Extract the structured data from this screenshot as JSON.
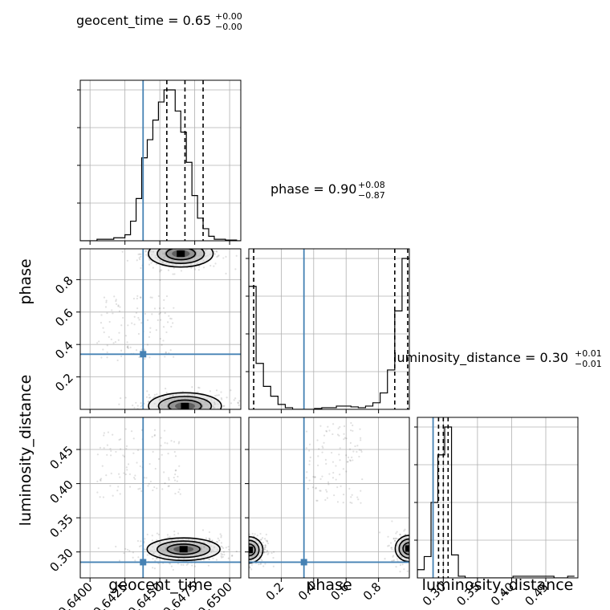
{
  "chart_data": {
    "type": "corner",
    "parameters": [
      "geocent_time",
      "phase",
      "luminosity_distance"
    ],
    "truth_color": "#4682b4",
    "truths": {
      "geocent_time": 0.6438,
      "phase": 0.34,
      "luminosity_distance": 0.285
    },
    "ranges": {
      "geocent_time": [
        0.6393,
        0.6508
      ],
      "phase": [
        0.0,
        0.99
      ],
      "luminosity_distance": [
        0.262,
        0.497
      ]
    },
    "ticks": {
      "geocent_time": [
        0.64,
        0.6425,
        0.645,
        0.6475,
        0.65
      ],
      "phase": [
        0.2,
        0.4,
        0.6,
        0.8
      ],
      "luminosity_distance": [
        0.3,
        0.35,
        0.4,
        0.45
      ]
    },
    "tick_labels": {
      "geocent_time": [
        "0.6400",
        "0.6425",
        "0.6450",
        "0.6475",
        "0.6500"
      ],
      "phase": [
        "0.2",
        "0.4",
        "0.6",
        "0.8"
      ],
      "luminosity_distance": [
        "0.30",
        "0.35",
        "0.40",
        "0.45"
      ]
    },
    "axis_labels": {
      "geocent_time": "geocent_time",
      "phase": "phase",
      "luminosity_distance": "luminosity_distance"
    },
    "titles": {
      "geocent_time": {
        "text": "geocent_time = 0.65",
        "plus": "+0.00",
        "minus": "−0.00"
      },
      "phase": {
        "text": "phase = 0.90",
        "plus": "+0.08",
        "minus": "−0.87"
      },
      "luminosity_distance": {
        "text": "luminosity_distance = 0.30",
        "plus": "+0.01",
        "minus": "−0.01"
      }
    },
    "histograms": {
      "geocent_time": {
        "edges": [
          0.6393,
          0.6397,
          0.6401,
          0.6405,
          0.6409,
          0.6413,
          0.6417,
          0.6421,
          0.6425,
          0.6429,
          0.6433,
          0.6437,
          0.6441,
          0.6445,
          0.6449,
          0.6453,
          0.6457,
          0.6461,
          0.6465,
          0.6469,
          0.6473,
          0.6477,
          0.6481,
          0.6485,
          0.6489,
          0.6493,
          0.6497,
          0.6501,
          0.6505,
          0.6509
        ],
        "counts": [
          0,
          0,
          0,
          0.01,
          0.01,
          0.01,
          0.02,
          0.02,
          0.04,
          0.13,
          0.28,
          0.55,
          0.67,
          0.8,
          0.92,
          1.0,
          1.0,
          0.86,
          0.72,
          0.52,
          0.3,
          0.15,
          0.08,
          0.03,
          0.01,
          0.01,
          0.005,
          0.005,
          0.0
        ],
        "quantiles": [
          0.6455,
          0.6468,
          0.6481
        ]
      },
      "phase": {
        "edges": [
          0.0,
          0.045,
          0.09,
          0.135,
          0.18,
          0.225,
          0.27,
          0.315,
          0.36,
          0.405,
          0.45,
          0.495,
          0.54,
          0.585,
          0.63,
          0.675,
          0.72,
          0.765,
          0.81,
          0.855,
          0.9,
          0.945,
          0.99
        ],
        "counts": [
          0.75,
          0.28,
          0.14,
          0.08,
          0.03,
          0.01,
          0.0,
          0.0,
          0.0,
          0.005,
          0.01,
          0.01,
          0.02,
          0.02,
          0.015,
          0.01,
          0.02,
          0.04,
          0.1,
          0.24,
          0.6,
          0.92
        ],
        "quantiles": [
          0.03,
          0.9,
          0.98
        ]
      },
      "luminosity_distance": {
        "edges": [
          0.262,
          0.272,
          0.282,
          0.292,
          0.302,
          0.312,
          0.322,
          0.332,
          0.342,
          0.352,
          0.362,
          0.372,
          0.382,
          0.392,
          0.402,
          0.412,
          0.422,
          0.432,
          0.442,
          0.452,
          0.462,
          0.472,
          0.482,
          0.492
        ],
        "counts": [
          0.05,
          0.13,
          0.46,
          0.75,
          0.92,
          0.14,
          0.01,
          0.0,
          0.0,
          0.0,
          0.0,
          0.0,
          0.0,
          0.0,
          0.01,
          0.01,
          0.01,
          0.01,
          0.01,
          0.01,
          0.0,
          0.0,
          0.01
        ],
        "quantiles": [
          0.293,
          0.3,
          0.307
        ]
      }
    },
    "modes_2d": {
      "phase_vs_geocent_time": [
        {
          "x": 0.6465,
          "y": 0.96,
          "sx": 0.0008,
          "sy": 0.03
        },
        {
          "x": 0.6468,
          "y": 0.02,
          "sx": 0.0009,
          "sy": 0.03
        }
      ],
      "luminosity_distance_vs_geocent_time": [
        {
          "x": 0.6467,
          "y": 0.304,
          "sx": 0.0009,
          "sy": 0.006
        }
      ],
      "luminosity_distance_vs_phase": [
        {
          "x": 0.0,
          "y": 0.303,
          "sx": 0.03,
          "sy": 0.007
        },
        {
          "x": 0.99,
          "y": 0.305,
          "sx": 0.03,
          "sy": 0.007
        }
      ]
    },
    "grid": true
  }
}
